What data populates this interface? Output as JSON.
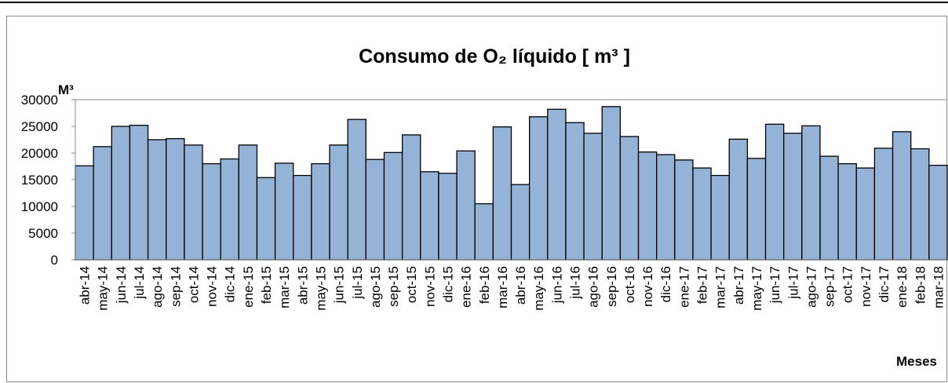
{
  "chart_data": {
    "type": "bar",
    "title": "Consumo de O₂ líquido [ m³ ]",
    "y_label": "M³",
    "x_label": "Meses",
    "categories": [
      "abr-14",
      "may-14",
      "jun-14",
      "jul-14",
      "ago-14",
      "sep-14",
      "oct-14",
      "nov-14",
      "dic-14",
      "ene-15",
      "feb-15",
      "mar-15",
      "abr-15",
      "may-15",
      "jun-15",
      "jul-15",
      "ago-15",
      "sep-15",
      "oct-15",
      "nov-15",
      "dic-15",
      "ene-16",
      "feb-16",
      "mar-16",
      "abr-16",
      "may-16",
      "jun-16",
      "jul-16",
      "ago-16",
      "sep-16",
      "oct-16",
      "nov-16",
      "dic-16",
      "ene-17",
      "feb-17",
      "mar-17",
      "abr-17",
      "may-17",
      "jun-17",
      "jul-17",
      "ago-17",
      "sep-17",
      "oct-17",
      "nov-17",
      "dic-17",
      "ene-18",
      "feb-18",
      "mar-18"
    ],
    "values": [
      17600,
      21200,
      25000,
      25200,
      22500,
      22700,
      21500,
      18000,
      18900,
      21500,
      15400,
      18100,
      15800,
      18000,
      21500,
      26300,
      18800,
      20100,
      23400,
      16500,
      16200,
      20400,
      10500,
      24900,
      14100,
      26800,
      28200,
      25700,
      23700,
      28700,
      23100,
      20200,
      19700,
      18700,
      17200,
      15800,
      22600,
      19000,
      25400,
      23700,
      25100,
      19400,
      18000,
      17200,
      20900,
      24000,
      20800,
      17700
    ],
    "color": "#95b3d7",
    "ylim": [
      0,
      30000
    ],
    "yticks": [
      0,
      5000,
      10000,
      15000,
      20000,
      25000,
      30000
    ],
    "grid": false
  }
}
